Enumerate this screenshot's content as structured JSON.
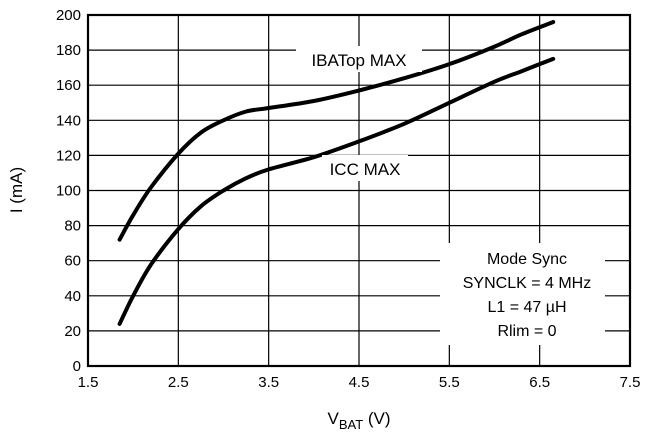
{
  "chart_data": {
    "type": "line",
    "title": "",
    "xlabel": "V",
    "xlabel_sub": "BAT",
    "xlabel_unit": " (V)",
    "ylabel": "I (mA)",
    "xlim": [
      1.5,
      7.5
    ],
    "ylim": [
      0,
      200
    ],
    "xticks": [
      "1.5",
      "2.5",
      "3.5",
      "4.5",
      "5.5",
      "6.5",
      "7.5"
    ],
    "yticks": [
      "0",
      "20",
      "40",
      "60",
      "80",
      "100",
      "120",
      "140",
      "160",
      "180",
      "200"
    ],
    "grid": true,
    "series": [
      {
        "name": "IBATop MAX",
        "x": [
          1.85,
          2.0,
          2.2,
          2.5,
          2.75,
          3.0,
          3.25,
          3.5,
          4.0,
          4.5,
          5.0,
          5.5,
          6.0,
          6.3,
          6.65
        ],
        "y": [
          72,
          86,
          102,
          121,
          133,
          140,
          145,
          147,
          151,
          157,
          164,
          172,
          182,
          189,
          196
        ]
      },
      {
        "name": "ICC MAX",
        "x": [
          1.85,
          2.0,
          2.2,
          2.5,
          2.75,
          3.0,
          3.25,
          3.5,
          4.0,
          4.5,
          5.0,
          5.5,
          6.0,
          6.3,
          6.65
        ],
        "y": [
          24,
          40,
          58,
          78,
          91,
          100,
          107,
          112,
          119,
          128,
          138,
          150,
          162,
          168,
          175
        ]
      }
    ],
    "annotations": [
      "Mode Sync",
      "SYNCLK = 4 MHz",
      "L1 = 47 µH",
      "Rlim = 0"
    ]
  }
}
